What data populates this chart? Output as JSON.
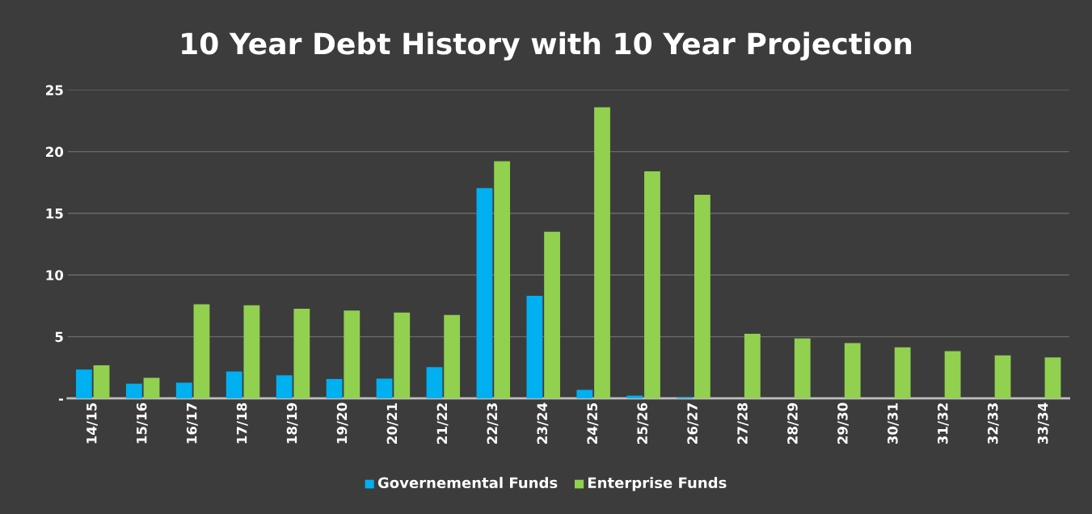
{
  "chart_data": {
    "type": "bar",
    "title": "10 Year Debt History with 10 Year Projection",
    "categories": [
      "14/15",
      "15/16",
      "16/17",
      "17/18",
      "18/19",
      "19/20",
      "20/21",
      "21/22",
      "22/23",
      "23/24",
      "24/25",
      "25/26",
      "26/27",
      "27/28",
      "28/29",
      "29/30",
      "30/31",
      "31/32",
      "32/33",
      "33/34"
    ],
    "series": [
      {
        "name": "Governemental Funds",
        "color": "#00b0f0",
        "values": [
          2.33,
          1.19,
          1.27,
          2.18,
          1.87,
          1.57,
          1.6,
          2.53,
          17.04,
          8.31,
          0.69,
          0.22,
          0.09,
          null,
          null,
          null,
          null,
          null,
          null,
          null
        ]
      },
      {
        "name": "Enterprise Funds",
        "color": "#92d050",
        "values": [
          2.68,
          1.67,
          7.62,
          7.54,
          7.27,
          7.11,
          6.96,
          6.76,
          19.22,
          13.5,
          23.6,
          18.4,
          16.5,
          5.23,
          4.86,
          4.48,
          4.14,
          3.82,
          3.48,
          3.32
        ]
      }
    ],
    "ylim": [
      0,
      25
    ],
    "yticks": [
      {
        "value": 0,
        "label": "-"
      },
      5,
      10,
      15,
      20,
      25
    ],
    "grid": "y",
    "legend": "bottom"
  }
}
